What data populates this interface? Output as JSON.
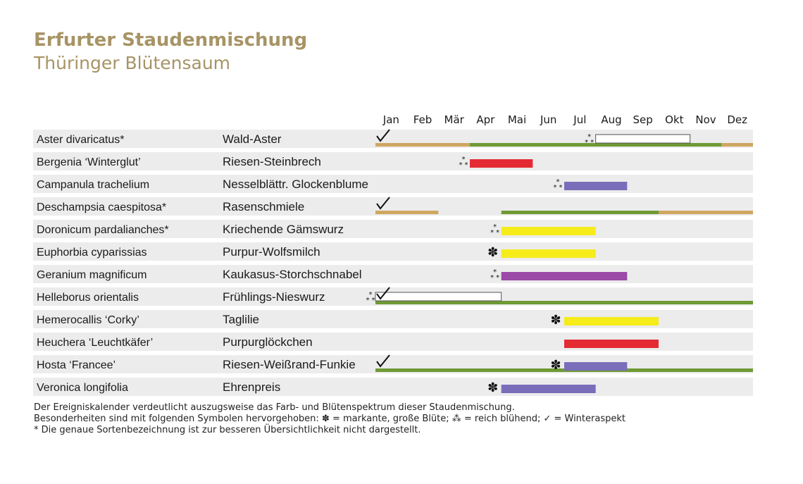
{
  "header": {
    "title": "Erfurter Staudenmischung",
    "subtitle": "Thüringer Blütensaum"
  },
  "colors": {
    "title": "#a79465",
    "row_bg": "#ececec",
    "foliage_green": "#6f9a34",
    "winter_tan": "#cfa760",
    "red": "#e42b33",
    "purple": "#7a6db9",
    "yellow": "#f6ec1a",
    "magenta": "#9b4aa8",
    "outline": "#555555"
  },
  "chart_data": {
    "type": "table",
    "months": [
      "Jan",
      "Feb",
      "Mär",
      "Apr",
      "Mai",
      "Jun",
      "Jul",
      "Aug",
      "Sep",
      "Okt",
      "Nov",
      "Dez"
    ],
    "rows": [
      {
        "latin": "Aster divaricatus*",
        "german": "Wald-Aster",
        "bars": [
          {
            "start": 0,
            "end": 3,
            "color": "winter_tan",
            "kind": "foliage"
          },
          {
            "start": 3,
            "end": 11,
            "color": "foliage_green",
            "kind": "foliage"
          },
          {
            "start": 11,
            "end": 12,
            "color": "winter_tan",
            "kind": "foliage"
          },
          {
            "start": 7,
            "end": 10,
            "color": "outline",
            "kind": "outline_bloom"
          }
        ],
        "symbols": [
          {
            "type": "winter",
            "at": 0
          },
          {
            "type": "reich",
            "at": 7
          }
        ]
      },
      {
        "latin": "Bergenia ‘Winterglut’",
        "german": "Riesen-Steinbrech",
        "bars": [
          {
            "start": 3,
            "end": 5,
            "color": "red",
            "kind": "bloom"
          }
        ],
        "symbols": [
          {
            "type": "reich",
            "at": 3
          }
        ]
      },
      {
        "latin": "Campanula trachelium",
        "german": "Nesselblättr. Glockenblume",
        "bars": [
          {
            "start": 6,
            "end": 8,
            "color": "purple",
            "kind": "bloom"
          }
        ],
        "symbols": [
          {
            "type": "reich",
            "at": 6
          }
        ]
      },
      {
        "latin": "Deschampsia caespitosa*",
        "german": "Rasenschmiele",
        "bars": [
          {
            "start": 0,
            "end": 2,
            "color": "winter_tan",
            "kind": "foliage"
          },
          {
            "start": 4,
            "end": 9,
            "color": "foliage_green",
            "kind": "foliage"
          },
          {
            "start": 9,
            "end": 12,
            "color": "winter_tan",
            "kind": "foliage"
          }
        ],
        "symbols": [
          {
            "type": "winter",
            "at": 0
          }
        ]
      },
      {
        "latin": "Doronicum pardalianches*",
        "german": "Kriechende Gämswurz",
        "bars": [
          {
            "start": 4,
            "end": 7,
            "color": "yellow",
            "kind": "bloom"
          }
        ],
        "symbols": [
          {
            "type": "reich",
            "at": 4
          }
        ]
      },
      {
        "latin": "Euphorbia cyparissias",
        "german": "Purpur-Wolfsmilch",
        "bars": [
          {
            "start": 4,
            "end": 7,
            "color": "yellow",
            "kind": "bloom"
          }
        ],
        "symbols": [
          {
            "type": "markant",
            "at": 4
          }
        ]
      },
      {
        "latin": "Geranium magnificum",
        "german": "Kaukasus-Storchschnabel",
        "bars": [
          {
            "start": 4,
            "end": 8,
            "color": "magenta",
            "kind": "bloom"
          }
        ],
        "symbols": [
          {
            "type": "reich",
            "at": 4
          }
        ]
      },
      {
        "latin": "Helleborus orientalis",
        "german": "Frühlings-Nieswurz",
        "bars": [
          {
            "start": 0,
            "end": 12,
            "color": "foliage_green",
            "kind": "foliage"
          },
          {
            "start": 0,
            "end": 4,
            "color": "outline",
            "kind": "outline_bloom"
          }
        ],
        "symbols": [
          {
            "type": "reich",
            "at": 0
          },
          {
            "type": "winter",
            "at": 0
          }
        ]
      },
      {
        "latin": "Hemerocallis ‘Corky’",
        "german": "Taglilie",
        "bars": [
          {
            "start": 6,
            "end": 9,
            "color": "yellow",
            "kind": "bloom"
          }
        ],
        "symbols": [
          {
            "type": "markant",
            "at": 6
          }
        ]
      },
      {
        "latin": "Heuchera ‘Leuchtkäfer’",
        "german": "Purpurglöckchen",
        "bars": [
          {
            "start": 6,
            "end": 9,
            "color": "red",
            "kind": "bloom"
          }
        ],
        "symbols": []
      },
      {
        "latin": "Hosta ‘Francee’",
        "german": "Riesen-Weißrand-Funkie",
        "bars": [
          {
            "start": 0,
            "end": 12,
            "color": "foliage_green",
            "kind": "foliage"
          },
          {
            "start": 6,
            "end": 8,
            "color": "purple",
            "kind": "bloom"
          }
        ],
        "symbols": [
          {
            "type": "winter",
            "at": 0
          },
          {
            "type": "markant",
            "at": 6
          }
        ]
      },
      {
        "latin": "Veronica longifolia",
        "german": "Ehrenpreis",
        "bars": [
          {
            "start": 4,
            "end": 7,
            "color": "purple",
            "kind": "bloom"
          }
        ],
        "symbols": [
          {
            "type": "markant",
            "at": 4
          }
        ]
      }
    ]
  },
  "footer": {
    "line1": "Der Ereigniskalender verdeutlicht auszugsweise das Farb- und Blütenspektrum dieser Staudenmischung.",
    "line2": "Besonderheiten sind mit folgenden Symbolen hervorgehoben: ✽ = markante, große Blüte; ⁂ = reich blühend;  ✓ = Winteraspekt",
    "line3": "* Die genaue Sortenbezeichnung ist zur besseren Übersichtlichkeit nicht dargestellt."
  }
}
